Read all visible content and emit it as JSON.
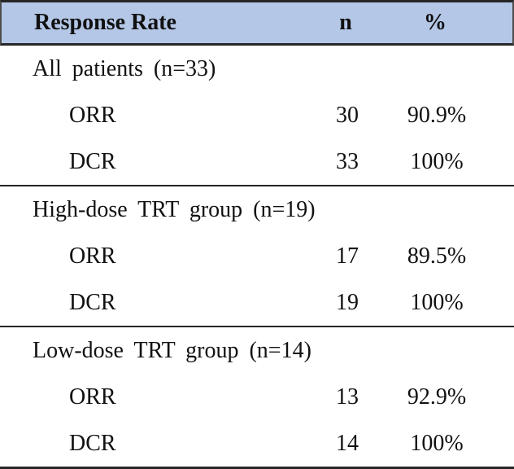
{
  "chart_data": {
    "type": "table",
    "title": "Response Rate",
    "columns": [
      "Response Rate",
      "n",
      "%"
    ],
    "sections": [
      {
        "title": "All patients (n=33)",
        "rows": [
          {
            "label": "ORR",
            "n": "30",
            "pct": "90.9%"
          },
          {
            "label": "DCR",
            "n": "33",
            "pct": "100%"
          }
        ]
      },
      {
        "title": "High-dose TRT group (n=19)",
        "rows": [
          {
            "label": "ORR",
            "n": "17",
            "pct": "89.5%"
          },
          {
            "label": "DCR",
            "n": "19",
            "pct": "100%"
          }
        ]
      },
      {
        "title": "Low-dose TRT group (n=14)",
        "rows": [
          {
            "label": "ORR",
            "n": "13",
            "pct": "92.9%"
          },
          {
            "label": "DCR",
            "n": "14",
            "pct": "100%"
          }
        ]
      }
    ],
    "layout_hints": {
      "header_alignment": "left / center / center",
      "grid": "horizontal rules only"
    }
  },
  "colors": {
    "header_bg": "#b4c7e7",
    "rule": "#262626",
    "text": "#111111"
  }
}
